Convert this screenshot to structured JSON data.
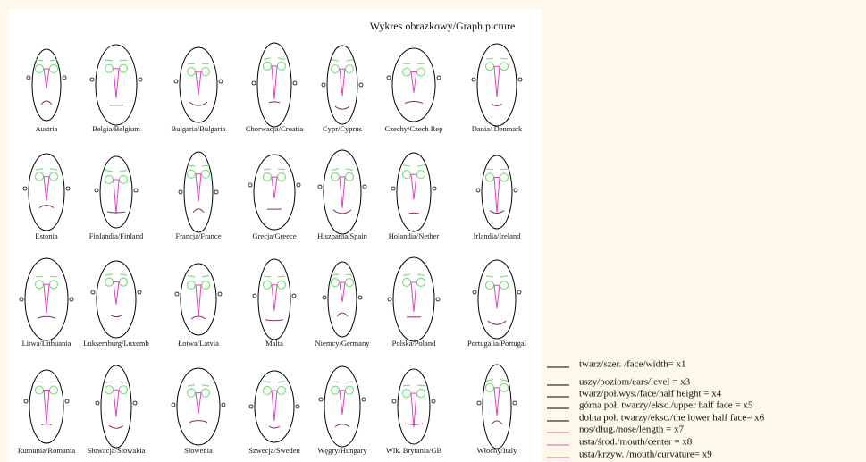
{
  "title": "Wykres obrazkowy/Graph picture",
  "faces": [
    {
      "label": "Austria"
    },
    {
      "label": "Belgia/Belgium"
    },
    {
      "label": "Bułgaria/Bulgaria"
    },
    {
      "label": "Chorwacja/Croatia"
    },
    {
      "label": "Cypr/Cyprus"
    },
    {
      "label": "Czechy/Czech Rep"
    },
    {
      "label": "Dania/ Denmark"
    },
    {
      "label": "Estonia"
    },
    {
      "label": "Finlandia/Finland"
    },
    {
      "label": "Francja/France"
    },
    {
      "label": "Grecja/Greece"
    },
    {
      "label": "Hiszpania/Spain"
    },
    {
      "label": "Holandia/Nether"
    },
    {
      "label": "Irlandia/Ireland"
    },
    {
      "label": "Litwa/Lithuania"
    },
    {
      "label": "Luksemburg/Luxemb"
    },
    {
      "label": "Łotwa/Latvia"
    },
    {
      "label": "Malta"
    },
    {
      "label": "Niemcy/Germany"
    },
    {
      "label": "Polska/Poland"
    },
    {
      "label": "Portugalia/Portugal"
    },
    {
      "label": "Rumunia/Romania"
    },
    {
      "label": "Słowacja/Słowakia"
    },
    {
      "label": "Słowenia"
    },
    {
      "label": "Szwecja/Sweden"
    },
    {
      "label": "Węgry/Hungary"
    },
    {
      "label": "Wlk. Brytania/GB"
    },
    {
      "label": "Włochy/Italy"
    }
  ],
  "legend": [
    {
      "label": "twarz/szer. /face/width= x1",
      "color": "#000000"
    },
    {
      "label": "uszy/poziom/ears/level = x3",
      "color": "#000000"
    },
    {
      "label": "twarz/poł.wys./face/half height = x4",
      "color": "#000000"
    },
    {
      "label": "górna poł. twarzy/eksc./upper half face = x5",
      "color": "#000000"
    },
    {
      "label": "dolna poł. twarzy/eksc./the lower half face= x6",
      "color": "#000000"
    },
    {
      "label": "nos/dług./nose/length = x7",
      "color": "#e060b0"
    },
    {
      "label": "usta/środ./mouth/center = x8",
      "color": "#e060b0"
    },
    {
      "label": "usta/krzyw. /mouth/curvature= x9",
      "color": "#e060b0"
    }
  ]
}
